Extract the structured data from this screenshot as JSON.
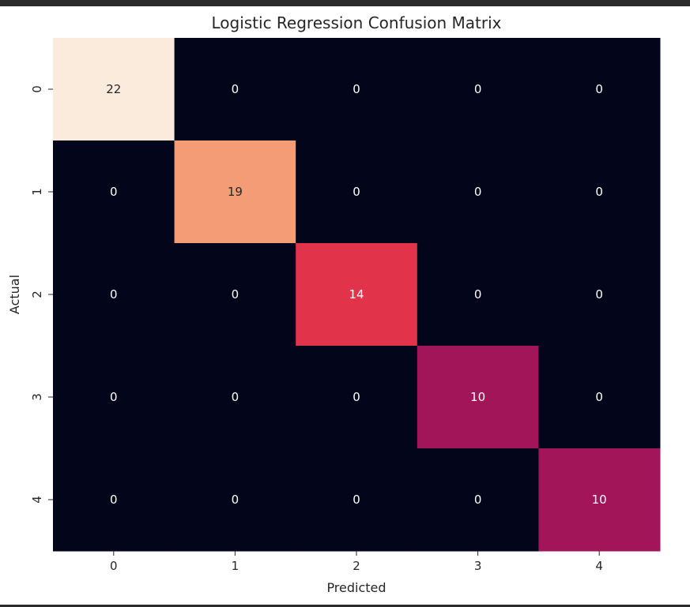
{
  "chart_data": {
    "type": "heatmap",
    "title": "Logistic Regression Confusion Matrix",
    "xlabel": "Predicted",
    "ylabel": "Actual",
    "x_categories": [
      "0",
      "1",
      "2",
      "3",
      "4"
    ],
    "y_categories": [
      "0",
      "1",
      "2",
      "3",
      "4"
    ],
    "values": [
      [
        22,
        0,
        0,
        0,
        0
      ],
      [
        0,
        19,
        0,
        0,
        0
      ],
      [
        0,
        0,
        14,
        0,
        0
      ],
      [
        0,
        0,
        0,
        10,
        0
      ],
      [
        0,
        0,
        0,
        0,
        10
      ]
    ],
    "colormap": "rocket",
    "colorbar": false,
    "annotations": true,
    "colors": {
      "zero": "#03051a",
      "max": "#faebdd",
      "text_light": "#ffffff",
      "text_dark": "#262626"
    }
  }
}
